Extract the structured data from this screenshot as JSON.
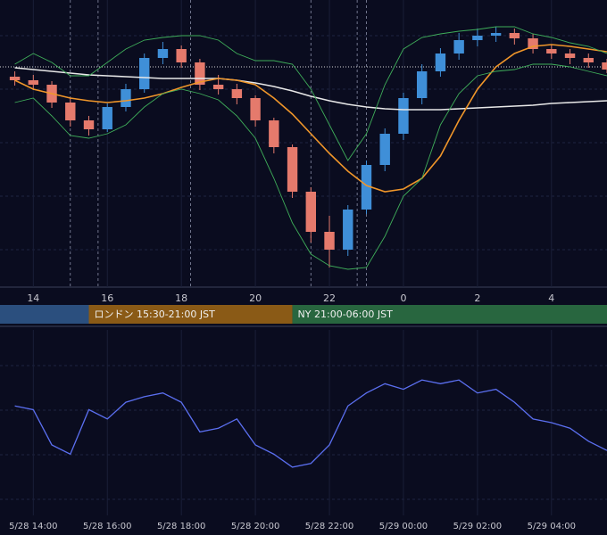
{
  "chart_data": [
    {
      "type": "candlestick",
      "x": [
        13.5,
        14,
        14.5,
        15,
        15.5,
        16,
        16.5,
        17,
        17.5,
        18,
        18.5,
        19,
        19.5,
        20,
        20.5,
        21,
        21.5,
        22,
        22.5,
        23,
        23.5,
        24,
        24.5,
        25,
        25.5,
        26,
        26.5,
        27,
        27.5,
        28,
        28.5,
        29,
        29.5
      ],
      "open": [
        236,
        232,
        227,
        207,
        187,
        177,
        202,
        222,
        257,
        267,
        252,
        227,
        222,
        212,
        187,
        157,
        107,
        62,
        42,
        87,
        137,
        172,
        212,
        242,
        262,
        277,
        282,
        285,
        279,
        267,
        262,
        257,
        252
      ],
      "high": [
        242,
        238,
        231,
        212,
        192,
        206,
        228,
        262,
        275,
        271,
        256,
        238,
        228,
        215,
        190,
        160,
        112,
        80,
        92,
        142,
        178,
        218,
        250,
        268,
        285,
        290,
        292,
        290,
        284,
        272,
        267,
        262,
        256
      ],
      "low": [
        226,
        221,
        201,
        180,
        170,
        174,
        197,
        218,
        250,
        246,
        221,
        216,
        205,
        180,
        150,
        100,
        50,
        22,
        35,
        82,
        130,
        165,
        205,
        236,
        255,
        270,
        275,
        272,
        262,
        256,
        250,
        246,
        240
      ],
      "close": [
        232,
        227,
        207,
        187,
        177,
        202,
        222,
        257,
        267,
        252,
        227,
        222,
        212,
        187,
        157,
        107,
        62,
        42,
        87,
        137,
        172,
        212,
        242,
        262,
        277,
        282,
        285,
        279,
        267,
        262,
        257,
        252,
        244
      ],
      "up_color": "#3f8fd8",
      "down_color": "#e57a6c",
      "overlays": [
        {
          "color": "#e8e8e8",
          "values": [
            246,
            244,
            242,
            240,
            238,
            237,
            236,
            235,
            234,
            234,
            234,
            234,
            232,
            229,
            225,
            220,
            214,
            209,
            205,
            202,
            200,
            199,
            199,
            199,
            200,
            201,
            202,
            203,
            204,
            206,
            207,
            208,
            209
          ]
        },
        {
          "color": "#f0962a",
          "values": [
            232,
            222,
            217,
            212,
            209,
            207,
            209,
            212,
            217,
            224,
            230,
            234,
            232,
            227,
            212,
            194,
            172,
            150,
            130,
            114,
            107,
            110,
            122,
            147,
            187,
            222,
            247,
            262,
            270,
            272,
            270,
            267,
            264
          ]
        },
        {
          "color": "#3fae5a",
          "values": [
            250,
            262,
            252,
            237,
            237,
            252,
            267,
            277,
            280,
            282,
            282,
            277,
            262,
            254,
            254,
            250,
            222,
            182,
            142,
            172,
            227,
            267,
            280,
            284,
            287,
            289,
            292,
            292,
            284,
            280,
            274,
            270,
            262
          ]
        },
        {
          "color": "#3fae5a",
          "values": [
            207,
            212,
            192,
            170,
            167,
            172,
            182,
            202,
            217,
            222,
            217,
            210,
            192,
            167,
            122,
            72,
            37,
            24,
            20,
            22,
            57,
            102,
            122,
            182,
            217,
            237,
            242,
            244,
            250,
            250,
            247,
            242,
            237
          ]
        }
      ],
      "price_line": 247,
      "vlines": [
        15,
        15.75,
        18.25,
        21.5,
        22.75,
        23
      ],
      "sessions": [
        {
          "start": 9,
          "end": 15.5,
          "color": "#2b4f7e"
        },
        {
          "label": "ロンドン 15:30-21:00 JST",
          "start": 15.5,
          "end": 21,
          "color": "#8a5a16"
        },
        {
          "label": "NY 21:00-06:00 JST",
          "start": 21,
          "end": 30,
          "color": "#28663f"
        }
      ],
      "xlim": [
        13.1,
        29.5
      ],
      "ylim": [
        0,
        322
      ],
      "xticks": [
        14,
        16,
        18,
        20,
        22,
        {
          "value": 24,
          "label": "0"
        },
        {
          "value": 26,
          "label": "2"
        },
        {
          "value": 28,
          "label": "4"
        }
      ]
    },
    {
      "type": "line",
      "x": [
        13.5,
        14,
        14.5,
        15,
        15.5,
        16,
        16.5,
        17,
        17.5,
        18,
        18.5,
        19,
        19.5,
        20,
        20.5,
        21,
        21.5,
        22,
        22.5,
        23,
        23.5,
        24,
        24.5,
        25,
        25.5,
        26,
        26.5,
        27,
        27.5,
        28,
        28.5,
        29,
        29.5
      ],
      "values": [
        59,
        57,
        38,
        33,
        57,
        52,
        61,
        64,
        66,
        61,
        45,
        47,
        52,
        38,
        33,
        26,
        28,
        38,
        59,
        66,
        71,
        68,
        73,
        71,
        73,
        66,
        68,
        61,
        52,
        50,
        47,
        40,
        35
      ],
      "color": "#5b6ff0",
      "xlim": [
        13.1,
        29.5
      ],
      "ylim": [
        0,
        100
      ],
      "xticks": [
        {
          "value": 14,
          "label": "5/28 14:00"
        },
        {
          "value": 16,
          "label": "5/28 16:00"
        },
        {
          "value": 18,
          "label": "5/28 18:00"
        },
        {
          "value": 20,
          "label": "5/28 20:00"
        },
        {
          "value": 22,
          "label": "5/28 22:00"
        },
        {
          "value": 24,
          "label": "5/29 00:00"
        },
        {
          "value": 26,
          "label": "5/29 02:00"
        },
        {
          "value": 28,
          "label": "5/29 04:00"
        }
      ]
    }
  ]
}
